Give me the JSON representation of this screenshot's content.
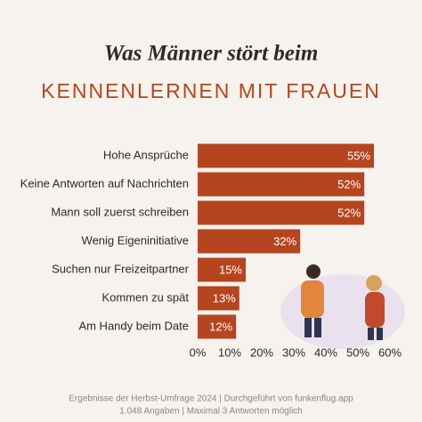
{
  "chart_data": {
    "type": "bar",
    "orientation": "horizontal",
    "title": "Was Männer stört beim",
    "subtitle": "KENNENLERNEN MIT FRAUEN",
    "categories": [
      "Hohe Ansprüche",
      "Keine Antworten auf Nachrichten",
      "Mann soll zuerst schreiben",
      "Wenig Eigeninitiative",
      "Suchen nur Freizeitpartner",
      "Kommen zu spät",
      "Am Handy beim Date"
    ],
    "values": [
      55,
      52,
      52,
      32,
      15,
      13,
      12
    ],
    "value_labels": [
      "55%",
      "52%",
      "52%",
      "32%",
      "15%",
      "13%",
      "12%"
    ],
    "color": "#b5451f",
    "xlim": [
      0,
      60
    ],
    "xticks": [
      {
        "value": 0,
        "label": "0%"
      },
      {
        "value": 10,
        "label": "10%"
      },
      {
        "value": 20,
        "label": "20%"
      },
      {
        "value": 30,
        "label": "30%"
      },
      {
        "value": 40,
        "label": "40%"
      },
      {
        "value": 50,
        "label": "50%"
      },
      {
        "value": 60,
        "label": "60%"
      }
    ],
    "footer": [
      "Ergebnisse der Herbst-Umfrage 2024 | Durchgeführt von funkenflug.app",
      "1.048 Angaben | Maximal 3 Antworten möglich"
    ]
  }
}
